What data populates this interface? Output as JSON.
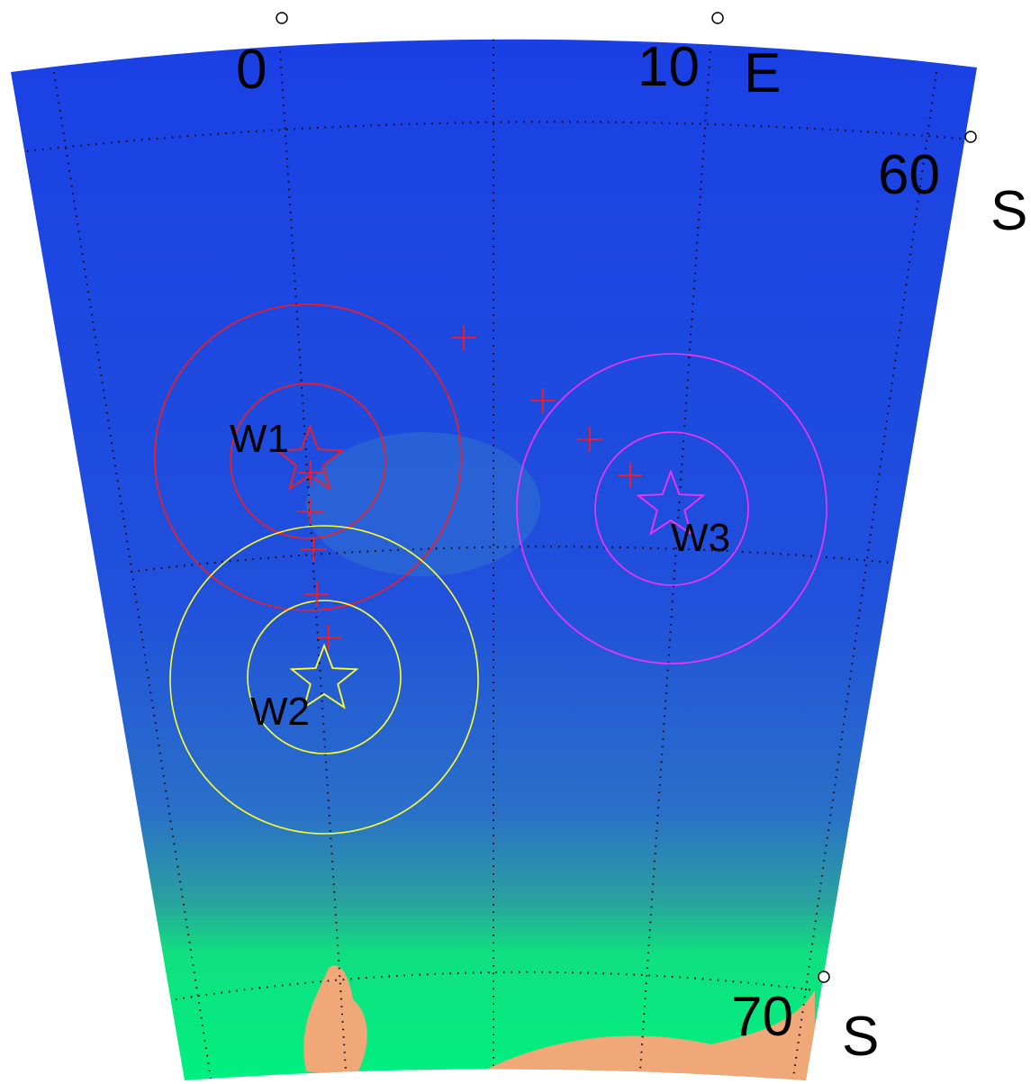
{
  "longitude_labels": [
    "0",
    "10"
  ],
  "longitude_hemisphere": "E",
  "latitude_labels": [
    {
      "value": "60",
      "hemisphere": "S"
    },
    {
      "value": "70",
      "hemisphere": "S"
    }
  ],
  "sites": [
    {
      "label": "W1"
    },
    {
      "label": "W2"
    },
    {
      "label": "W3"
    }
  ]
}
